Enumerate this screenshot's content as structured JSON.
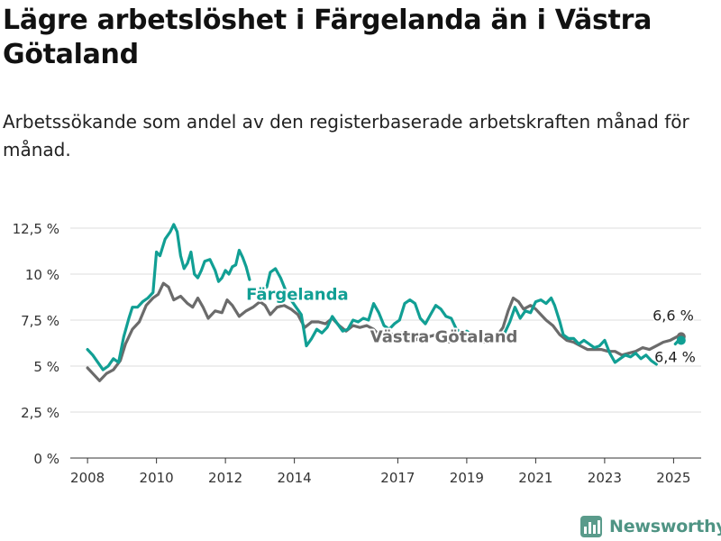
{
  "title": "Lägre arbetslöshet i Färgelanda än i Västra Götaland",
  "subtitle": "Arbetssökande som andel av den registerbaserade arbetskraften månad för månad.",
  "brand": "Newsworthy",
  "colors": {
    "fargelanda": "#119f94",
    "vastra_gotaland": "#6b6b6b",
    "grid": "#dddddd",
    "brand": "#4f9484"
  },
  "chart_data": {
    "type": "line",
    "ylim": [
      0,
      12.5
    ],
    "yticks": [
      0,
      2.5,
      5,
      7.5,
      10,
      12.5
    ],
    "ytick_labels": [
      "0 %",
      "2,5 %",
      "5 %",
      "7,5 %",
      "10 %",
      "12,5 %"
    ],
    "xlim": [
      2007.5,
      2025.8
    ],
    "xticks": [
      2008,
      2010,
      2012,
      2014,
      2017,
      2019,
      2021,
      2023,
      2025
    ],
    "xtick_labels": [
      "2008",
      "2010",
      "2012",
      "2014",
      "2017",
      "2019",
      "2021",
      "2023",
      "2025"
    ],
    "grid": true,
    "series": [
      {
        "name": "Västra Götaland",
        "end_label": "6,6 %",
        "points": [
          [
            2008.0,
            4.9
          ],
          [
            2008.15,
            4.6
          ],
          [
            2008.35,
            4.2
          ],
          [
            2008.55,
            4.6
          ],
          [
            2008.75,
            4.8
          ],
          [
            2008.95,
            5.3
          ],
          [
            2009.1,
            6.2
          ],
          [
            2009.3,
            7.0
          ],
          [
            2009.5,
            7.4
          ],
          [
            2009.7,
            8.3
          ],
          [
            2009.9,
            8.7
          ],
          [
            2010.05,
            8.9
          ],
          [
            2010.2,
            9.5
          ],
          [
            2010.35,
            9.3
          ],
          [
            2010.5,
            8.6
          ],
          [
            2010.7,
            8.8
          ],
          [
            2010.9,
            8.4
          ],
          [
            2011.05,
            8.2
          ],
          [
            2011.2,
            8.7
          ],
          [
            2011.35,
            8.2
          ],
          [
            2011.5,
            7.6
          ],
          [
            2011.7,
            8.0
          ],
          [
            2011.9,
            7.9
          ],
          [
            2012.05,
            8.6
          ],
          [
            2012.2,
            8.3
          ],
          [
            2012.4,
            7.7
          ],
          [
            2012.6,
            8.0
          ],
          [
            2012.8,
            8.2
          ],
          [
            2013.0,
            8.5
          ],
          [
            2013.15,
            8.3
          ],
          [
            2013.3,
            7.8
          ],
          [
            2013.5,
            8.2
          ],
          [
            2013.7,
            8.3
          ],
          [
            2013.9,
            8.1
          ],
          [
            2014.1,
            7.8
          ],
          [
            2014.3,
            7.1
          ],
          [
            2014.5,
            7.4
          ],
          [
            2014.7,
            7.4
          ],
          [
            2014.9,
            7.3
          ],
          [
            2015.1,
            7.6
          ],
          [
            2015.3,
            7.2
          ],
          [
            2015.5,
            6.9
          ],
          [
            2015.7,
            7.2
          ],
          [
            2015.9,
            7.1
          ],
          [
            2016.1,
            7.2
          ],
          [
            2016.3,
            7.0
          ],
          [
            2016.5,
            6.6
          ],
          [
            2016.7,
            6.8
          ],
          [
            2016.9,
            6.7
          ],
          [
            2017.1,
            6.8
          ],
          [
            2017.3,
            6.7
          ],
          [
            2017.5,
            6.4
          ],
          [
            2017.7,
            6.6
          ],
          [
            2017.9,
            6.6
          ],
          [
            2018.1,
            6.7
          ],
          [
            2018.3,
            6.5
          ],
          [
            2018.5,
            6.3
          ],
          [
            2018.7,
            6.5
          ],
          [
            2018.9,
            6.4
          ],
          [
            2019.1,
            6.5
          ],
          [
            2019.3,
            6.4
          ],
          [
            2019.5,
            6.3
          ],
          [
            2019.7,
            6.5
          ],
          [
            2019.9,
            6.7
          ],
          [
            2020.05,
            7.1
          ],
          [
            2020.2,
            8.0
          ],
          [
            2020.35,
            8.7
          ],
          [
            2020.5,
            8.5
          ],
          [
            2020.65,
            8.1
          ],
          [
            2020.85,
            8.3
          ],
          [
            2021.0,
            8.1
          ],
          [
            2021.15,
            7.8
          ],
          [
            2021.3,
            7.5
          ],
          [
            2021.5,
            7.2
          ],
          [
            2021.7,
            6.7
          ],
          [
            2021.9,
            6.4
          ],
          [
            2022.1,
            6.3
          ],
          [
            2022.3,
            6.1
          ],
          [
            2022.5,
            5.9
          ],
          [
            2022.7,
            5.9
          ],
          [
            2022.9,
            5.9
          ],
          [
            2023.1,
            5.8
          ],
          [
            2023.3,
            5.8
          ],
          [
            2023.5,
            5.6
          ],
          [
            2023.7,
            5.7
          ],
          [
            2023.9,
            5.8
          ],
          [
            2024.1,
            6.0
          ],
          [
            2024.3,
            5.9
          ],
          [
            2024.5,
            6.1
          ],
          [
            2024.7,
            6.3
          ],
          [
            2024.9,
            6.4
          ],
          [
            2025.1,
            6.6
          ],
          [
            2025.22,
            6.6
          ]
        ]
      },
      {
        "name": "Färgelanda",
        "end_label": "6,4 %",
        "points": [
          [
            2008.0,
            5.9
          ],
          [
            2008.15,
            5.6
          ],
          [
            2008.3,
            5.2
          ],
          [
            2008.45,
            4.8
          ],
          [
            2008.6,
            5.0
          ],
          [
            2008.75,
            5.4
          ],
          [
            2008.9,
            5.2
          ],
          [
            2009.05,
            6.6
          ],
          [
            2009.2,
            7.6
          ],
          [
            2009.3,
            8.2
          ],
          [
            2009.45,
            8.2
          ],
          [
            2009.6,
            8.5
          ],
          [
            2009.75,
            8.7
          ],
          [
            2009.9,
            9.0
          ],
          [
            2010.0,
            11.2
          ],
          [
            2010.1,
            11.0
          ],
          [
            2010.25,
            11.9
          ],
          [
            2010.4,
            12.3
          ],
          [
            2010.5,
            12.7
          ],
          [
            2010.6,
            12.3
          ],
          [
            2010.7,
            11.0
          ],
          [
            2010.8,
            10.3
          ],
          [
            2010.9,
            10.6
          ],
          [
            2011.0,
            11.2
          ],
          [
            2011.1,
            10.0
          ],
          [
            2011.2,
            9.8
          ],
          [
            2011.3,
            10.2
          ],
          [
            2011.4,
            10.7
          ],
          [
            2011.55,
            10.8
          ],
          [
            2011.7,
            10.2
          ],
          [
            2011.8,
            9.6
          ],
          [
            2011.9,
            9.8
          ],
          [
            2012.0,
            10.2
          ],
          [
            2012.1,
            10.0
          ],
          [
            2012.2,
            10.4
          ],
          [
            2012.3,
            10.5
          ],
          [
            2012.4,
            11.3
          ],
          [
            2012.5,
            10.9
          ],
          [
            2012.6,
            10.4
          ],
          [
            2012.7,
            9.7
          ],
          [
            2012.85,
            null
          ],
          [
            2013.0,
            null
          ],
          [
            2013.1,
            9.2
          ],
          [
            2013.2,
            9.3
          ],
          [
            2013.3,
            10.1
          ],
          [
            2013.45,
            10.3
          ],
          [
            2013.6,
            9.8
          ],
          [
            2013.75,
            9.1
          ],
          [
            2013.9,
            8.6
          ],
          [
            2014.05,
            8.2
          ],
          [
            2014.2,
            7.8
          ],
          [
            2014.35,
            6.1
          ],
          [
            2014.5,
            6.5
          ],
          [
            2014.65,
            7.0
          ],
          [
            2014.8,
            6.8
          ],
          [
            2014.95,
            7.1
          ],
          [
            2015.1,
            7.7
          ],
          [
            2015.25,
            7.3
          ],
          [
            2015.4,
            6.9
          ],
          [
            2015.55,
            7.0
          ],
          [
            2015.7,
            7.5
          ],
          [
            2015.85,
            7.4
          ],
          [
            2016.0,
            7.6
          ],
          [
            2016.15,
            7.5
          ],
          [
            2016.3,
            8.4
          ],
          [
            2016.45,
            7.9
          ],
          [
            2016.6,
            7.2
          ],
          [
            2016.75,
            7.0
          ],
          [
            2016.9,
            7.3
          ],
          [
            2017.05,
            7.5
          ],
          [
            2017.2,
            8.4
          ],
          [
            2017.35,
            8.6
          ],
          [
            2017.5,
            8.4
          ],
          [
            2017.65,
            7.6
          ],
          [
            2017.8,
            7.3
          ],
          [
            2017.95,
            7.8
          ],
          [
            2018.1,
            8.3
          ],
          [
            2018.25,
            8.1
          ],
          [
            2018.4,
            7.7
          ],
          [
            2018.55,
            7.6
          ],
          [
            2018.7,
            7.0
          ],
          [
            2018.85,
            6.8
          ],
          [
            2019.0,
            6.9
          ],
          [
            2019.15,
            6.7
          ],
          [
            2019.3,
            6.5
          ],
          [
            2019.45,
            null
          ],
          [
            2019.6,
            6.6
          ],
          [
            2019.75,
            null
          ],
          [
            2020.0,
            null
          ],
          [
            2020.1,
            6.8
          ],
          [
            2020.25,
            7.4
          ],
          [
            2020.4,
            8.2
          ],
          [
            2020.55,
            7.6
          ],
          [
            2020.7,
            8.0
          ],
          [
            2020.85,
            7.9
          ],
          [
            2021.0,
            8.5
          ],
          [
            2021.15,
            8.6
          ],
          [
            2021.3,
            8.4
          ],
          [
            2021.45,
            8.7
          ],
          [
            2021.55,
            8.3
          ],
          [
            2021.7,
            7.4
          ],
          [
            2021.8,
            6.7
          ],
          [
            2021.95,
            6.5
          ],
          [
            2022.1,
            6.5
          ],
          [
            2022.25,
            6.2
          ],
          [
            2022.4,
            6.4
          ],
          [
            2022.55,
            6.2
          ],
          [
            2022.7,
            6.0
          ],
          [
            2022.85,
            6.1
          ],
          [
            2023.0,
            6.4
          ],
          [
            2023.15,
            5.7
          ],
          [
            2023.3,
            5.2
          ],
          [
            2023.45,
            5.4
          ],
          [
            2023.6,
            5.6
          ],
          [
            2023.75,
            5.5
          ],
          [
            2023.9,
            5.7
          ],
          [
            2024.05,
            5.4
          ],
          [
            2024.2,
            5.6
          ],
          [
            2024.35,
            5.3
          ],
          [
            2024.5,
            5.1
          ],
          [
            2024.65,
            null
          ],
          [
            2025.05,
            6.2
          ],
          [
            2025.15,
            6.4
          ],
          [
            2025.22,
            6.4
          ]
        ]
      }
    ],
    "annotations": [
      {
        "text": "Färgelanda",
        "series": "Färgelanda",
        "x": 2012.6,
        "y": 8.6
      },
      {
        "text": "Västra Götaland",
        "series": "Västra Götaland",
        "x": 2016.2,
        "y": 6.3
      }
    ]
  }
}
